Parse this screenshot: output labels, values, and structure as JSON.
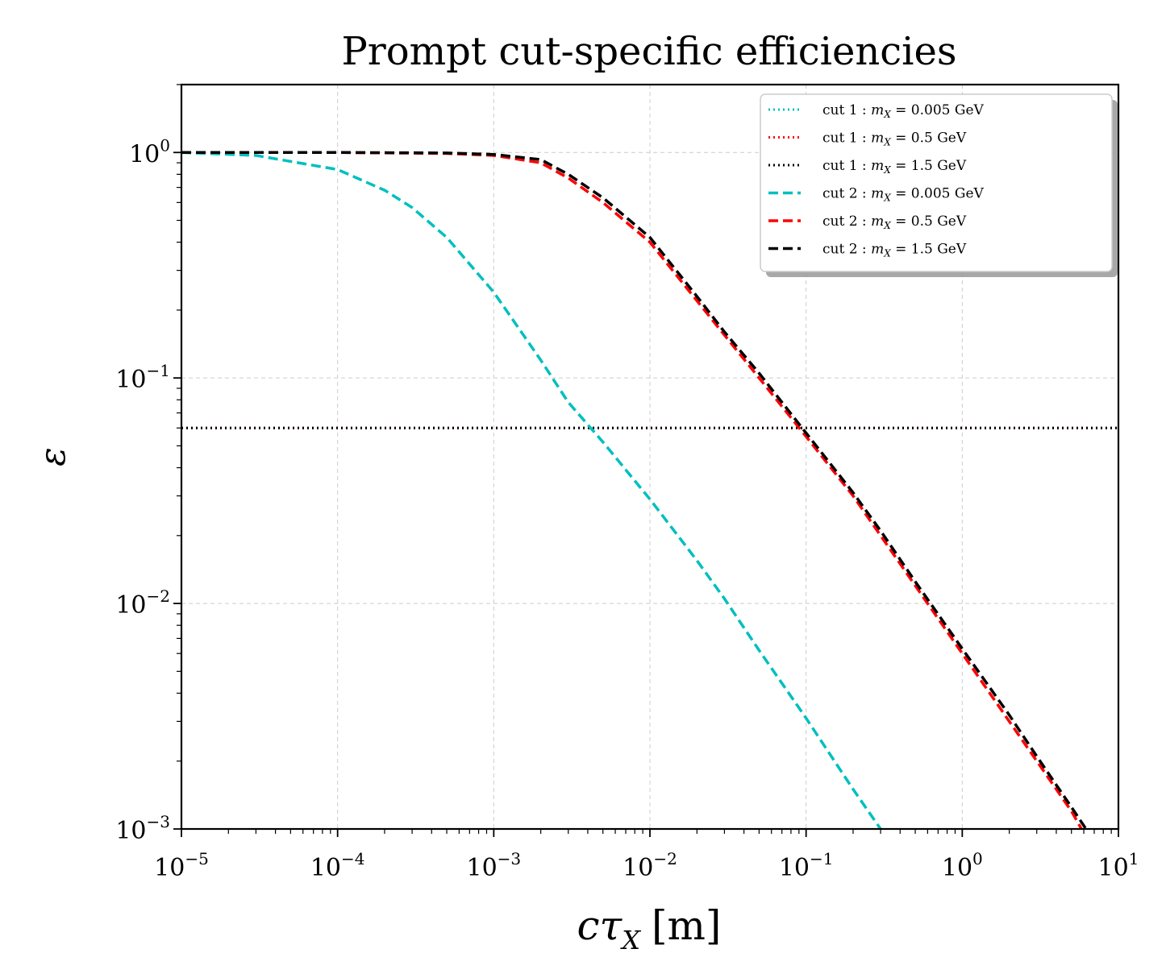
{
  "chart_data": {
    "type": "line",
    "title": "Prompt cut-specific efficiencies",
    "xlabel": "cτ_X [m]",
    "xlabel_main": "cτ",
    "xlabel_sub": "X",
    "xlabel_unit": "[m]",
    "ylabel": "ε",
    "xscale": "log",
    "yscale": "log",
    "xlim": [
      1e-05,
      10
    ],
    "ylim": [
      0.001,
      2
    ],
    "grid": true,
    "legend_position": "top-right",
    "x_ticks": [
      {
        "base": "10",
        "exp": "−5",
        "value": 1e-05
      },
      {
        "base": "10",
        "exp": "−4",
        "value": 0.0001
      },
      {
        "base": "10",
        "exp": "−3",
        "value": 0.001
      },
      {
        "base": "10",
        "exp": "−2",
        "value": 0.01
      },
      {
        "base": "10",
        "exp": "−1",
        "value": 0.1
      },
      {
        "base": "10",
        "exp": "0",
        "value": 1
      },
      {
        "base": "10",
        "exp": "1",
        "value": 10
      }
    ],
    "y_ticks": [
      {
        "base": "10",
        "exp": "−3",
        "value": 0.001
      },
      {
        "base": "10",
        "exp": "−2",
        "value": 0.01
      },
      {
        "base": "10",
        "exp": "−1",
        "value": 0.1
      },
      {
        "base": "10",
        "exp": "0",
        "value": 1
      }
    ],
    "series": [
      {
        "name": "cut 1 : m_X = 0.005 GeV",
        "legend": {
          "cut": "cut 1 : ",
          "m": "m",
          "sub": "X",
          "value": " = 0.005 GeV"
        },
        "color": "#00bfbf",
        "style": "dotted",
        "x": [
          1e-05,
          10
        ],
        "y": [
          0.06,
          0.06
        ]
      },
      {
        "name": "cut 1 : m_X = 0.5 GeV",
        "legend": {
          "cut": "cut 1 : ",
          "m": "m",
          "sub": "X",
          "value": " = 0.5 GeV"
        },
        "color": "#ff0000",
        "style": "dotted",
        "x": [
          1e-05,
          10
        ],
        "y": [
          0.06,
          0.06
        ]
      },
      {
        "name": "cut 1 : m_X = 1.5 GeV",
        "legend": {
          "cut": "cut 1 : ",
          "m": "m",
          "sub": "X",
          "value": " = 1.5 GeV"
        },
        "color": "#000000",
        "style": "dotted",
        "x": [
          1e-05,
          10
        ],
        "y": [
          0.06,
          0.06
        ]
      },
      {
        "name": "cut 2 : m_X = 0.005 GeV",
        "legend": {
          "cut": "cut 2 : ",
          "m": "m",
          "sub": "X",
          "value": " = 0.005 GeV"
        },
        "color": "#00bfbf",
        "style": "dashed",
        "x": [
          1e-05,
          3e-05,
          0.0001,
          0.0002,
          0.0003,
          0.0005,
          0.001,
          0.002,
          0.003,
          0.005,
          0.01,
          0.02,
          0.03,
          0.05,
          0.1,
          0.2,
          0.3
        ],
        "y": [
          1.0,
          0.97,
          0.84,
          0.68,
          0.57,
          0.42,
          0.24,
          0.12,
          0.078,
          0.052,
          0.029,
          0.0155,
          0.0105,
          0.0062,
          0.0031,
          0.0015,
          0.001
        ]
      },
      {
        "name": "cut 2 : m_X = 0.5 GeV",
        "legend": {
          "cut": "cut 2 : ",
          "m": "m",
          "sub": "X",
          "value": " = 0.5 GeV"
        },
        "color": "#ff0000",
        "style": "dashed",
        "x": [
          1e-05,
          0.0001,
          0.0005,
          0.001,
          0.002,
          0.003,
          0.005,
          0.01,
          0.02,
          0.03,
          0.05,
          0.1,
          0.2,
          0.3,
          0.5,
          1,
          2,
          3,
          5,
          5.8
        ],
        "y": [
          1.0,
          1.0,
          0.99,
          0.97,
          0.9,
          0.77,
          0.6,
          0.4,
          0.22,
          0.155,
          0.1,
          0.055,
          0.03,
          0.02,
          0.012,
          0.006,
          0.003,
          0.002,
          0.0012,
          0.001
        ]
      },
      {
        "name": "cut 2 : m_X = 1.5 GeV",
        "legend": {
          "cut": "cut 2 : ",
          "m": "m",
          "sub": "X",
          "value": " = 1.5 GeV"
        },
        "color": "#000000",
        "style": "dashed",
        "x": [
          1e-05,
          0.0001,
          0.0005,
          0.001,
          0.002,
          0.003,
          0.005,
          0.01,
          0.02,
          0.03,
          0.05,
          0.1,
          0.2,
          0.3,
          0.5,
          1,
          2,
          3,
          5,
          6.2
        ],
        "y": [
          1.0,
          1.0,
          0.995,
          0.98,
          0.93,
          0.8,
          0.63,
          0.42,
          0.23,
          0.16,
          0.105,
          0.057,
          0.031,
          0.021,
          0.0125,
          0.0063,
          0.0032,
          0.0021,
          0.00125,
          0.001
        ]
      }
    ]
  }
}
